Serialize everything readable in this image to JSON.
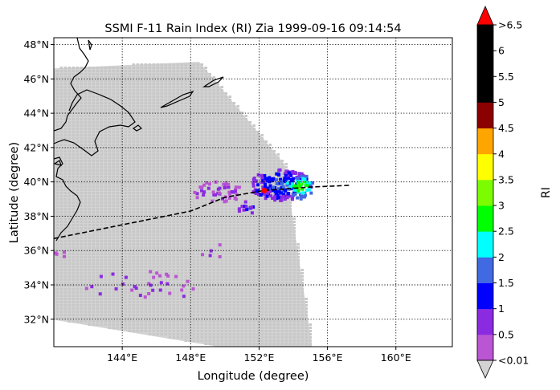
{
  "chart_data": {
    "type": "map",
    "title": "SSMI F-11 Rain Index (RI) Zia 1999-09-16 09:14:54",
    "xlabel": "Longitude (degree)",
    "ylabel": "Latitude (degree)",
    "xlim": [
      140.0,
      163.3
    ],
    "ylim": [
      30.4,
      48.4
    ],
    "x_ticks": [
      {
        "value": 144,
        "label": "144°E"
      },
      {
        "value": 148,
        "label": "148°E"
      },
      {
        "value": 152,
        "label": "152°E"
      },
      {
        "value": 156,
        "label": "156°E"
      },
      {
        "value": 160,
        "label": "160°E"
      }
    ],
    "y_ticks": [
      {
        "value": 32,
        "label": "32°N"
      },
      {
        "value": 34,
        "label": "34°N"
      },
      {
        "value": 36,
        "label": "36°N"
      },
      {
        "value": 38,
        "label": "38°N"
      },
      {
        "value": 40,
        "label": "40°N"
      },
      {
        "value": 42,
        "label": "42°N"
      },
      {
        "value": 44,
        "label": "44°N"
      },
      {
        "value": 46,
        "label": "46°N"
      },
      {
        "value": 48,
        "label": "48°N"
      }
    ],
    "grid": true,
    "colorbar": {
      "label": "RI",
      "levels": [
        0.01,
        0.5,
        1,
        1.5,
        2,
        2.5,
        3,
        3.5,
        4,
        4.5,
        5,
        5.5,
        6,
        6.5
      ],
      "tick_labels": [
        "<0.01",
        "0.5",
        "1",
        "1.5",
        "2",
        "2.5",
        "3",
        "3.5",
        "4",
        "4.5",
        "5",
        "5.5",
        "6",
        ">6.5"
      ],
      "colors": [
        "#ba55d3",
        "#8a2be2",
        "#0000ff",
        "#4169e1",
        "#00ffff",
        "#00ff00",
        "#7cfc00",
        "#ffff00",
        "#ffa500",
        "#8b0000",
        "#000000",
        "#000000",
        "#000000"
      ],
      "under_color": "#d3d3d3",
      "over_color": "#ff0000"
    },
    "swath": {
      "corners": [
        [
          139.8,
          46.6
        ],
        [
          148.5,
          47.0
        ],
        [
          153.5,
          41.0
        ],
        [
          155.1,
          30.4
        ],
        [
          149.6,
          30.4
        ],
        [
          139.8,
          32.0
        ]
      ],
      "background_color": "#d3d3d3"
    },
    "storm_track": [
      [
        140.0,
        36.7
      ],
      [
        144.0,
        37.5
      ],
      [
        148.0,
        38.3
      ],
      [
        150.0,
        39.1
      ],
      [
        152.3,
        39.5
      ],
      [
        155.0,
        39.7
      ],
      [
        157.3,
        39.8
      ]
    ],
    "storm_position": [
      152.3,
      39.5
    ],
    "rain_clusters": [
      {
        "lon": 153.2,
        "lat": 39.9,
        "spread_lon": 1.8,
        "spread_lat": 0.9,
        "class_min": 1,
        "class_max": 3,
        "count": 260
      },
      {
        "lon": 154.3,
        "lat": 39.8,
        "spread_lon": 0.8,
        "spread_lat": 0.7,
        "class_min": 3,
        "class_max": 6,
        "count": 90
      },
      {
        "lon": 149.5,
        "lat": 39.5,
        "spread_lon": 1.5,
        "spread_lat": 0.6,
        "class_min": 0,
        "class_max": 1,
        "count": 60
      },
      {
        "lon": 151.2,
        "lat": 38.6,
        "spread_lon": 0.6,
        "spread_lat": 0.4,
        "class_min": 1,
        "class_max": 2,
        "count": 14
      },
      {
        "lon": 145.0,
        "lat": 34.0,
        "spread_lon": 4.0,
        "spread_lat": 0.9,
        "class_min": 0,
        "class_max": 1,
        "count": 40
      },
      {
        "lon": 140.3,
        "lat": 36.0,
        "spread_lon": 0.3,
        "spread_lat": 0.4,
        "class_min": 0,
        "class_max": 1,
        "count": 6
      },
      {
        "lon": 149.2,
        "lat": 36.0,
        "spread_lon": 1.0,
        "spread_lat": 0.5,
        "class_min": 0,
        "class_max": 1,
        "count": 8
      }
    ],
    "coastline_color": "#000000",
    "track_color": "#000000"
  }
}
